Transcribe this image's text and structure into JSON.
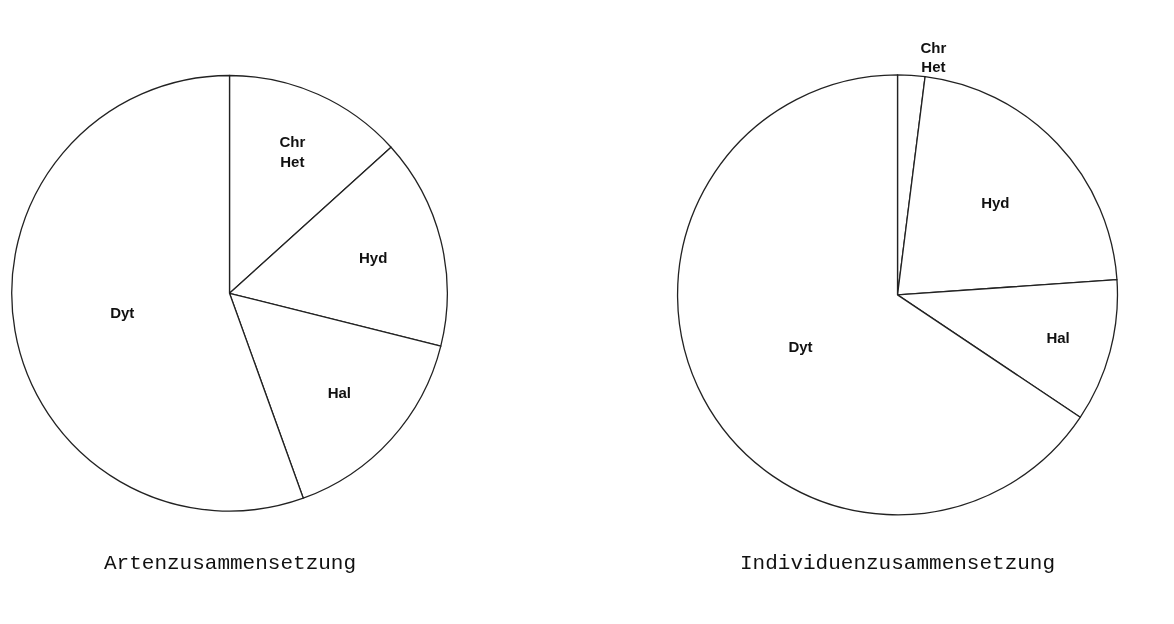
{
  "chart_data": [
    {
      "type": "pie",
      "title": "Artenzusammensetzung",
      "legend": false,
      "categories": [
        "Chr\nHet",
        "Hyd",
        "Hal",
        "Dyt"
      ],
      "values": [
        13.3,
        15.6,
        15.6,
        55.5
      ],
      "colors": [
        "#ffffff",
        "#ffffff",
        "#ffffff",
        "#ffffff"
      ]
    },
    {
      "type": "pie",
      "title": "Individuenzusammensetzung",
      "legend": false,
      "categories": [
        "Chr\nHet",
        "Hyd",
        "Hal",
        "Dyt"
      ],
      "values": [
        2.0,
        21.9,
        10.5,
        65.6
      ],
      "colors": [
        "#ffffff",
        "#ffffff",
        "#ffffff",
        "#ffffff"
      ]
    }
  ]
}
